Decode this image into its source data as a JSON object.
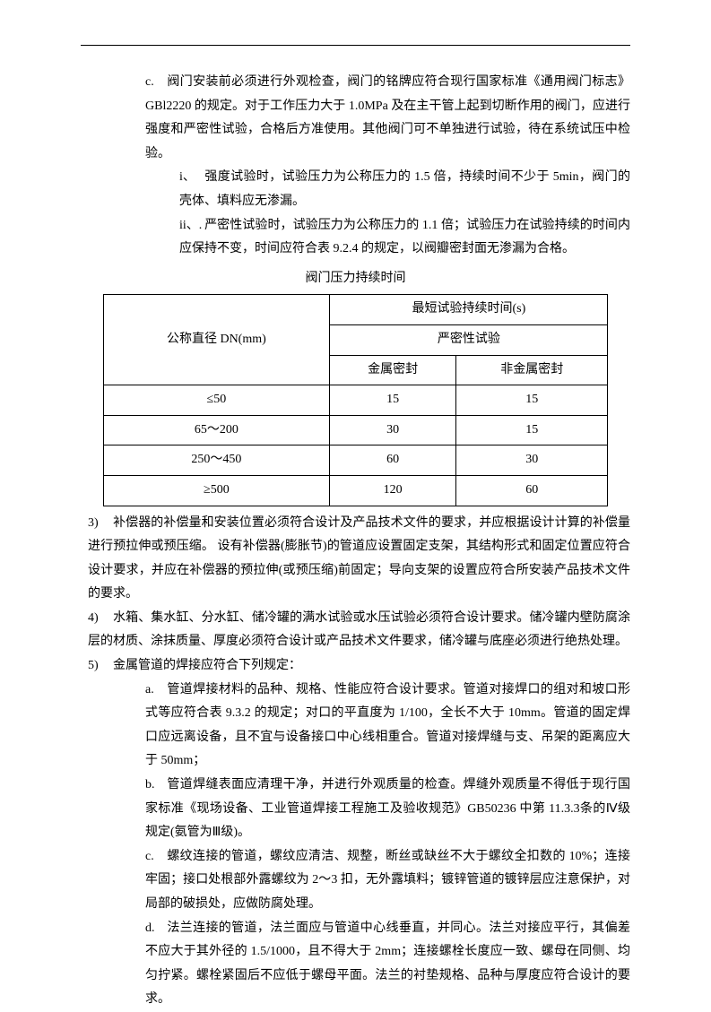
{
  "topItem_c_marker": "c.",
  "topItem_c_text": "阀门安装前必须进行外观检查，阀门的铭牌应符合现行国家标准《通用阀门标志》GBl2220 的规定。对于工作压力大于 1.0MPa 及在主干管上起到切断作用的阀门，应进行强度和严密性试验，合格后方准使用。其他阀门可不单独进行试验，待在系统试压中检验。",
  "sub_i_marker": "i、",
  "sub_i_text": "强度试验时，试验压力为公称压力的 1.5 倍，持续时间不少于 5min，阀门的壳体、填料应无渗漏。",
  "sub_ii_marker": "ii、.",
  "sub_ii_text": "严密性试验时，试验压力为公称压力的 1.1 倍；试验压力在试验持续的时间内应保持不变，时间应符合表 9.2.4 的规定，以阀瓣密封面无渗漏为合格。",
  "table_title": "阀门压力持续时间",
  "table": {
    "header_dn": "公称直径 DN(mm)",
    "header_time": "最短试验持续时间(s)",
    "header_test": "严密性试验",
    "header_metal": "金属密封",
    "header_nonmetal": "非金属密封",
    "rows": [
      {
        "dn": "≤50",
        "metal": "15",
        "nonmetal": "15"
      },
      {
        "dn": "65～200",
        "metal": "30",
        "nonmetal": "15"
      },
      {
        "dn": "250～450",
        "metal": "60",
        "nonmetal": "30"
      },
      {
        "dn": "≥500",
        "metal": "120",
        "nonmetal": "60"
      }
    ]
  },
  "item3_marker": "3)",
  "item3_text": "补偿器的补偿量和安装位置必须符合设计及产品技术文件的要求，并应根据设计计算的补偿量进行预拉伸或预压缩。  设有补偿器(膨胀节)的管道应设置固定支架，其结构形式和固定位置应符合设计要求，并应在补偿器的预拉伸(或预压缩)前固定；导向支架的设置应符合所安装产品技术文件的要求。",
  "item4_marker": "4)",
  "item4_text": "水箱、集水缸、分水缸、储冷罐的满水试验或水压试验必须符合设计要求。储冷罐内壁防腐涂层的材质、涂抹质量、厚度必须符合设计或产品技术文件要求，储冷罐与底座必须进行绝热处理。",
  "item5_marker": "5)",
  "item5_text": "金属管道的焊接应符合下列规定：",
  "item5a_marker": "a.",
  "item5a_text": "管道焊接材料的品种、规格、性能应符合设计要求。管道对接焊口的组对和坡口形式等应符合表 9.3.2 的规定；对口的平直度为 1/100，全长不大于 10mm。管道的固定焊口应远离设备，且不宜与设备接口中心线相重合。管道对接焊缝与支、吊架的距离应大于 50mm；",
  "item5b_marker": "b.",
  "item5b_text": "管道焊缝表面应清理干净，并进行外观质量的检查。焊缝外观质量不得低于现行国家标准《现场设备、工业管道焊接工程施工及验收规范》GB50236 中第 11.3.3条的Ⅳ级规定(氨管为Ⅲ级)。",
  "item5c_marker": "c.",
  "item5c_text": "螺纹连接的管道，螺纹应清洁、规整，断丝或缺丝不大于螺纹全扣数的 10%；连接牢固；接口处根部外露螺纹为 2～3 扣，无外露填料；镀锌管道的镀锌层应注意保护，对局部的破损处，应做防腐处理。",
  "item5d_marker": "d.",
  "item5d_text": "法兰连接的管道，法兰面应与管道中心线垂直，并同心。法兰对接应平行，其偏差不应大于其外径的 1.5/1000，且不得大于 2mm；连接螺栓长度应一致、螺母在同侧、均匀拧紧。螺栓紧固后不应低于螺母平面。法兰的衬垫规格、品种与厚度应符合设计的要求。"
}
